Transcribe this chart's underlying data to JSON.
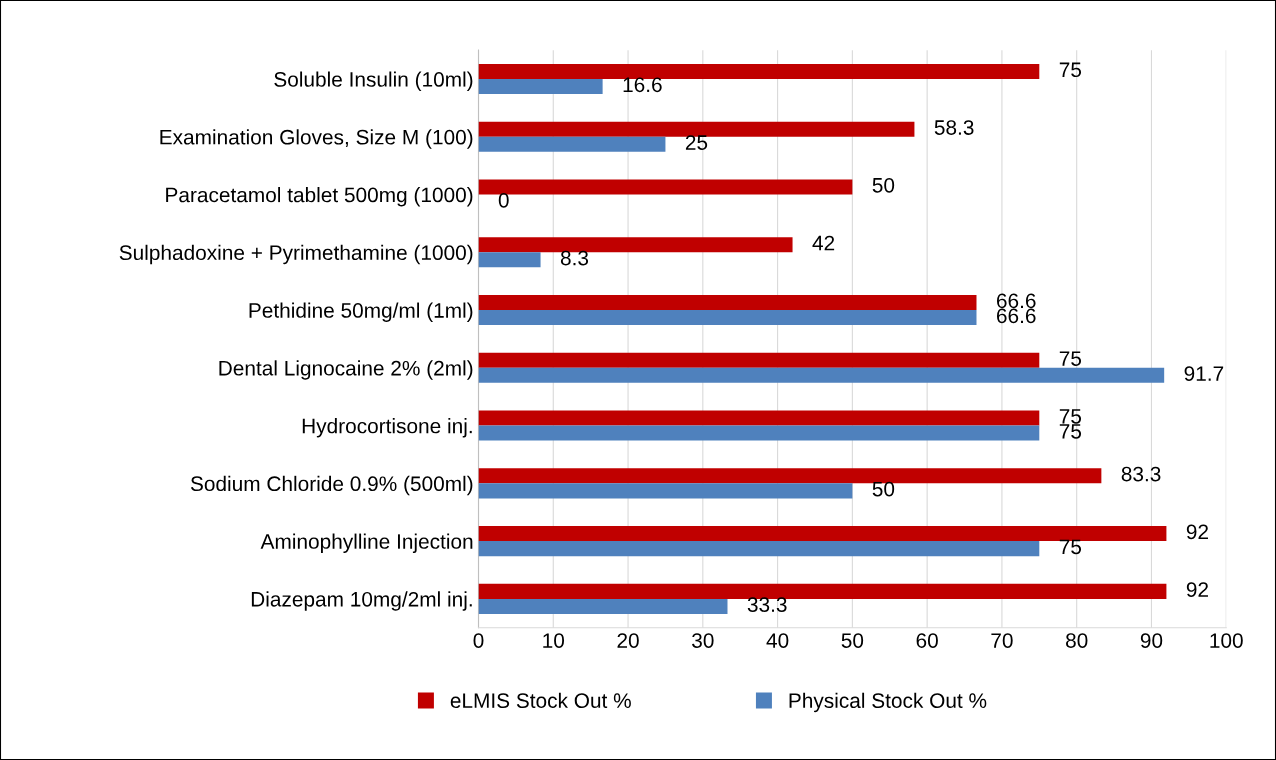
{
  "chart_data": {
    "type": "bar",
    "orientation": "horizontal",
    "categories": [
      "Soluble Insulin (10ml)",
      "Examination Gloves, Size M (100)",
      "Paracetamol tablet 500mg (1000)",
      "Sulphadoxine + Pyrimethamine (1000)",
      "Pethidine 50mg/ml (1ml)",
      "Dental Lignocaine 2% (2ml)",
      "Hydrocortisone inj.",
      "Sodium Chloride 0.9% (500ml)",
      "Aminophylline Injection",
      "Diazepam 10mg/2ml inj."
    ],
    "series": [
      {
        "name": "eLMIS Stock Out %",
        "color": "#c00000",
        "values": [
          75,
          58.3,
          50,
          42,
          66.6,
          75,
          75,
          83.3,
          92,
          92
        ]
      },
      {
        "name": "Physical Stock Out %",
        "color": "#4f81bd",
        "values": [
          16.6,
          25,
          0,
          8.3,
          66.6,
          91.7,
          75,
          50,
          75,
          33.3
        ]
      }
    ],
    "xlim": [
      0,
      100
    ],
    "xticks": [
      0,
      10,
      20,
      30,
      40,
      50,
      60,
      70,
      80,
      90,
      100
    ],
    "grid": "x",
    "legend": "bottom",
    "data_labels": true
  }
}
